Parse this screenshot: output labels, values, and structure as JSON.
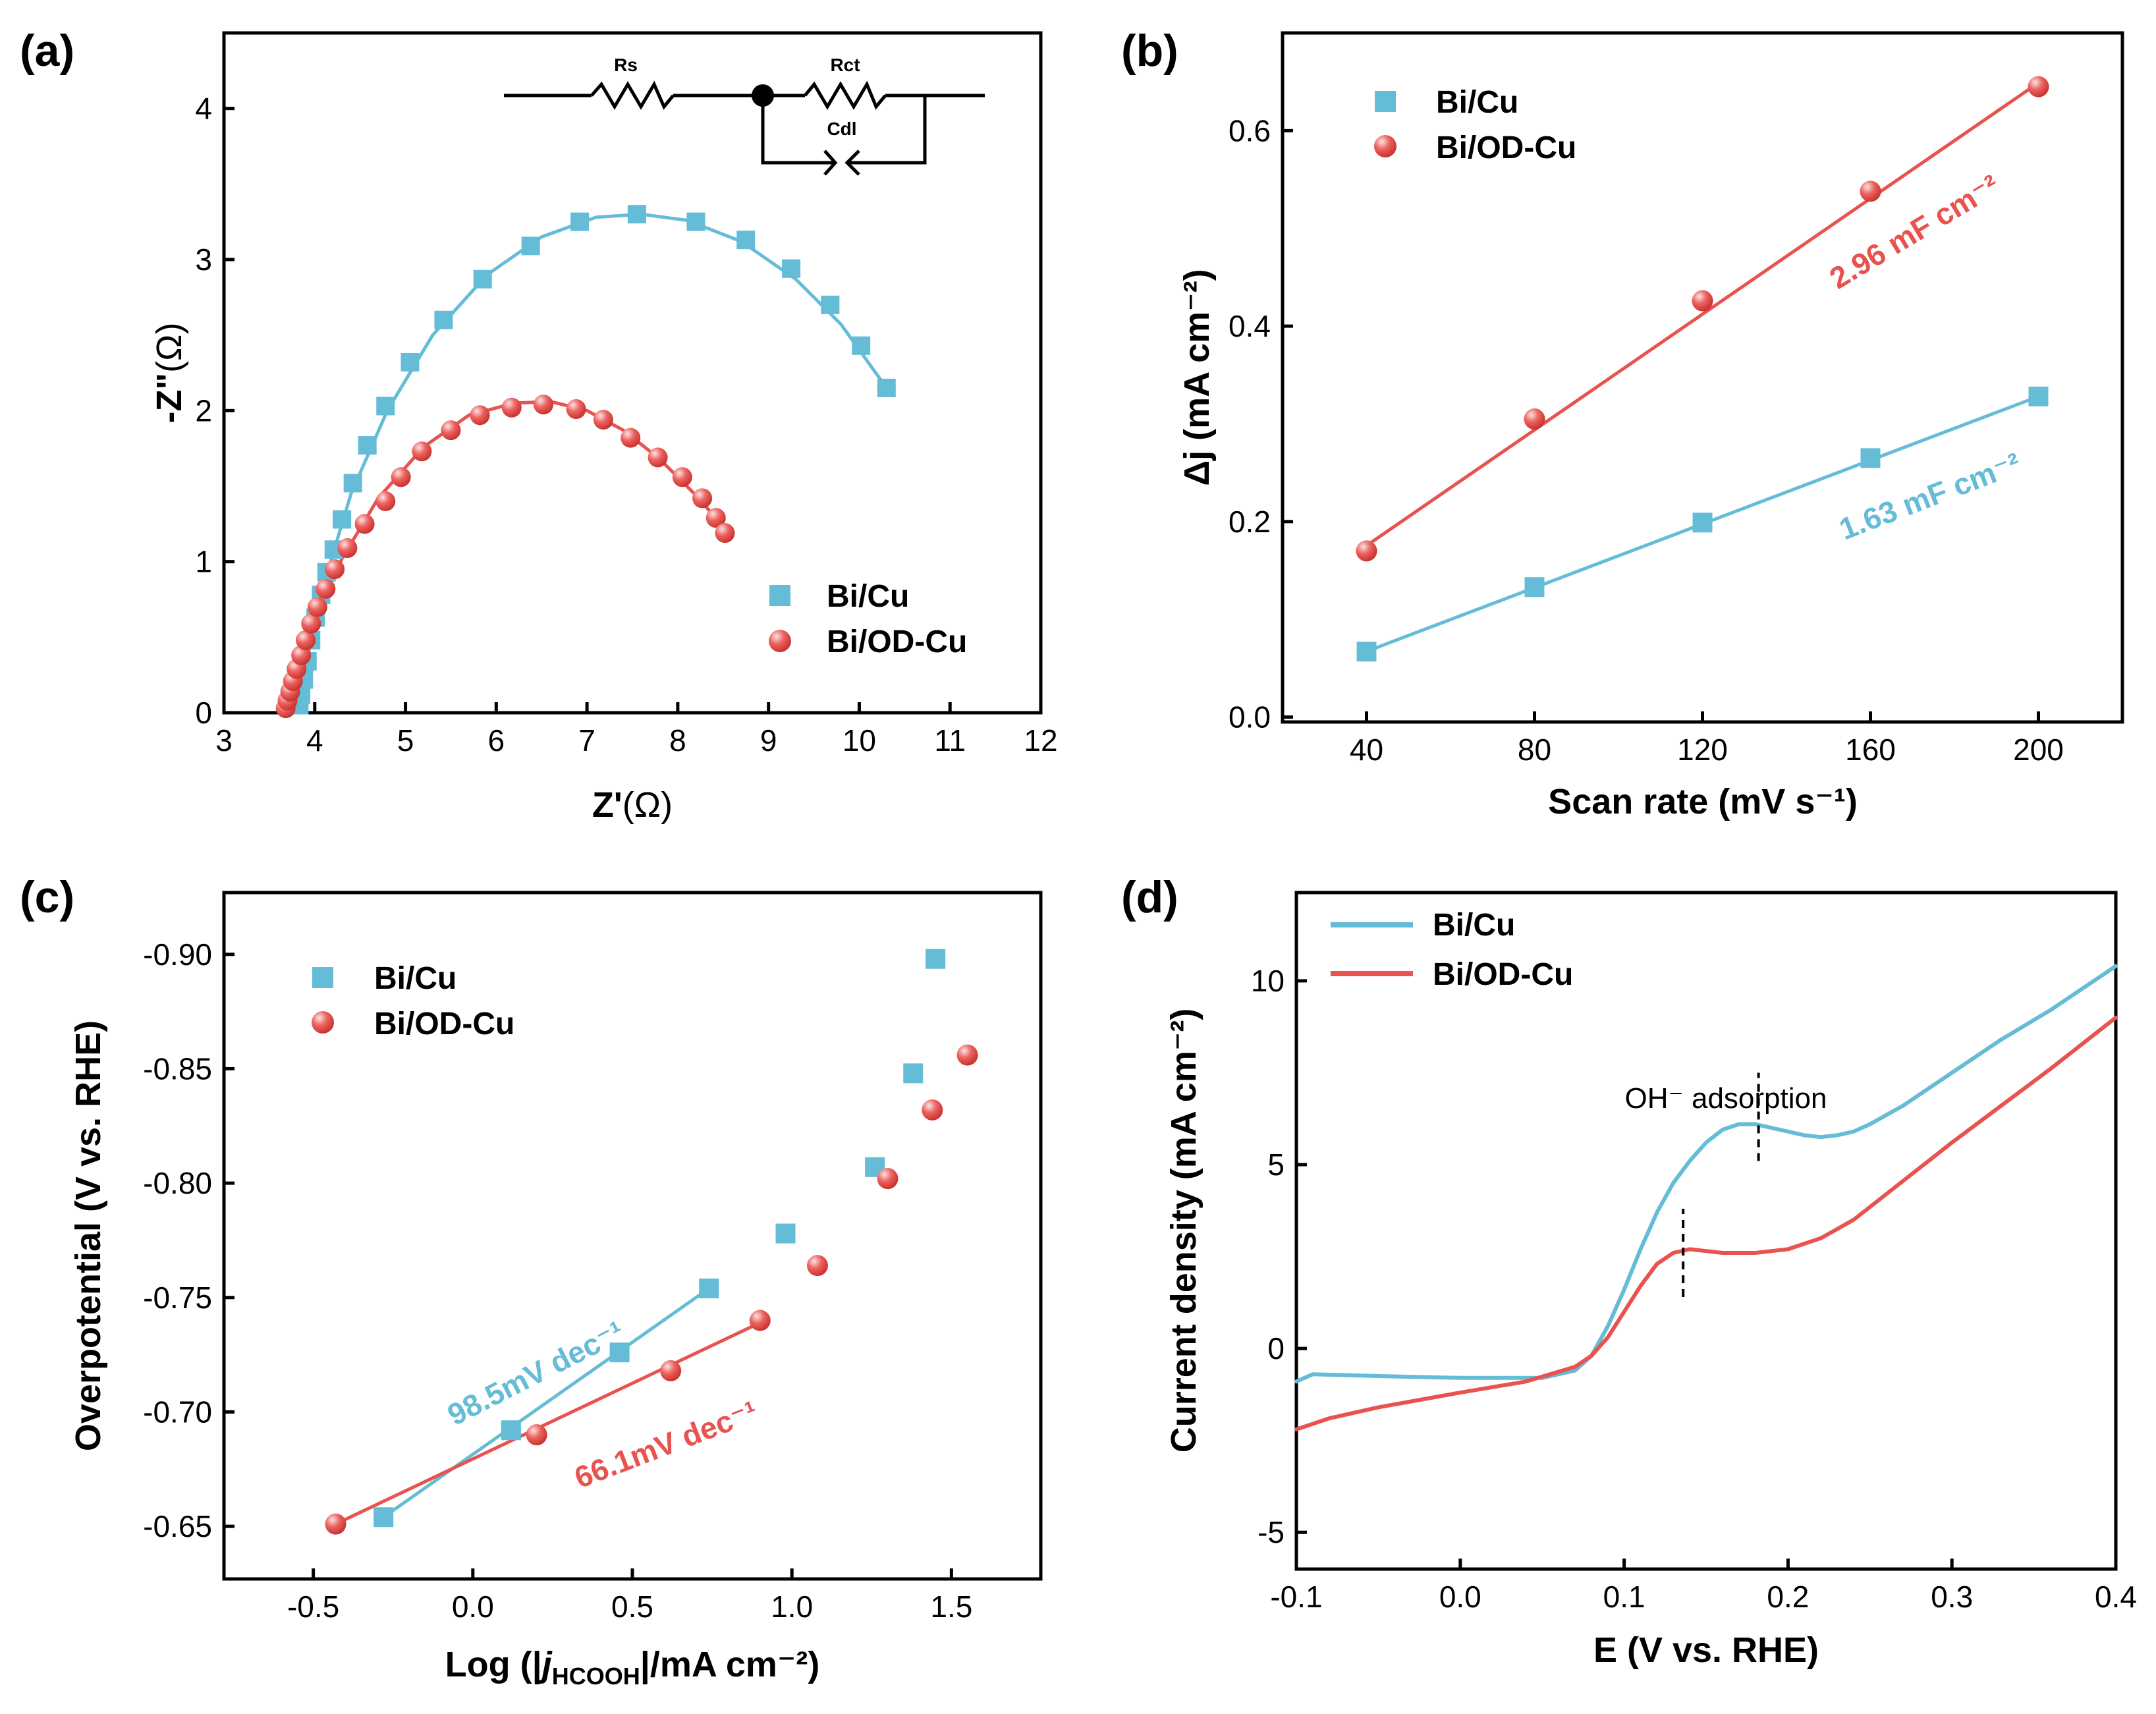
{
  "colors": {
    "bi_cu": "#65bcd6",
    "bi_od_cu": "#e8524f"
  },
  "chart_data": [
    {
      "id": "a",
      "panel_label": "(a)",
      "type": "scatter",
      "xlabel_main": "Z'",
      "xlabel_unit": "(Ω)",
      "ylabel_main": "-Z\"",
      "ylabel_unit": "(Ω)",
      "xlim": [
        3,
        12
      ],
      "ylim": [
        0,
        4.5
      ],
      "xticks": [
        3,
        4,
        5,
        6,
        7,
        8,
        9,
        10,
        11,
        12
      ],
      "yticks": [
        0,
        1,
        2,
        3,
        4
      ],
      "legend_position": "lower-right",
      "inset_circuit": {
        "labels": [
          "Rs",
          "Rct",
          "Cdl"
        ]
      },
      "series": [
        {
          "name": "Bi/Cu",
          "color": "#65bcd6",
          "marker": "square",
          "x": [
            3.83,
            3.85,
            3.88,
            3.92,
            3.96,
            4.01,
            4.07,
            4.13,
            4.21,
            4.3,
            4.42,
            4.58,
            4.78,
            5.05,
            5.42,
            5.85,
            6.38,
            6.92,
            7.55,
            8.2,
            8.75,
            9.25,
            9.68,
            10.02,
            10.3
          ],
          "y": [
            0.05,
            0.12,
            0.22,
            0.34,
            0.48,
            0.63,
            0.78,
            0.93,
            1.08,
            1.28,
            1.52,
            1.77,
            2.03,
            2.32,
            2.6,
            2.87,
            3.09,
            3.25,
            3.3,
            3.25,
            3.13,
            2.94,
            2.7,
            2.43,
            2.15
          ],
          "fit_x": [
            3.8,
            3.95,
            4.15,
            4.4,
            4.8,
            5.3,
            5.9,
            6.5,
            7.1,
            7.6,
            8.1,
            8.7,
            9.3,
            9.8,
            10.3
          ],
          "fit_y": [
            0.0,
            0.45,
            0.95,
            1.45,
            2.0,
            2.5,
            2.9,
            3.15,
            3.28,
            3.3,
            3.26,
            3.12,
            2.87,
            2.57,
            2.15
          ]
        },
        {
          "name": "Bi/OD-Cu",
          "color": "#e8524f",
          "marker": "sphere",
          "x": [
            3.68,
            3.7,
            3.73,
            3.76,
            3.8,
            3.85,
            3.9,
            3.96,
            4.03,
            4.12,
            4.22,
            4.36,
            4.55,
            4.78,
            4.95,
            5.18,
            5.5,
            5.82,
            6.17,
            6.52,
            6.88,
            7.18,
            7.48,
            7.78,
            8.05,
            8.27,
            8.42,
            8.52
          ],
          "y": [
            0.03,
            0.08,
            0.14,
            0.21,
            0.29,
            0.38,
            0.48,
            0.59,
            0.7,
            0.82,
            0.95,
            1.09,
            1.25,
            1.4,
            1.56,
            1.73,
            1.87,
            1.97,
            2.02,
            2.04,
            2.01,
            1.94,
            1.82,
            1.69,
            1.56,
            1.42,
            1.29,
            1.19
          ],
          "fit_x": [
            3.65,
            3.8,
            4.0,
            4.3,
            4.7,
            5.2,
            5.7,
            6.2,
            6.6,
            7.0,
            7.4,
            7.8,
            8.2,
            8.52
          ],
          "fit_y": [
            0.0,
            0.28,
            0.62,
            1.02,
            1.42,
            1.76,
            1.97,
            2.05,
            2.06,
            2.0,
            1.87,
            1.68,
            1.44,
            1.22
          ]
        }
      ]
    },
    {
      "id": "b",
      "panel_label": "(b)",
      "type": "scatter",
      "xlabel": "Scan rate (mV s⁻¹)",
      "ylabel": "Δj (mA cm⁻²)",
      "xlim": [
        20,
        220
      ],
      "ylim": [
        -0.005,
        0.7
      ],
      "xticks": [
        40,
        80,
        120,
        160,
        200
      ],
      "yticks": [
        0.0,
        0.2,
        0.4,
        0.6
      ],
      "ytick_labels": [
        "0.0",
        "0.2",
        "0.4",
        "0.6"
      ],
      "legend_position": "top-left",
      "series": [
        {
          "name": "Bi/Cu",
          "color": "#65bcd6",
          "marker": "square",
          "x": [
            40,
            80,
            120,
            160,
            200
          ],
          "y": [
            0.067,
            0.133,
            0.199,
            0.265,
            0.328
          ],
          "fit": {
            "slope": 0.00163,
            "intercept": 0.002
          },
          "annotation": "1.63 mF cm⁻²"
        },
        {
          "name": "Bi/OD-Cu",
          "color": "#e8524f",
          "marker": "sphere",
          "x": [
            40,
            80,
            120,
            160,
            200
          ],
          "y": [
            0.17,
            0.305,
            0.426,
            0.538,
            0.645
          ],
          "fit": {
            "slope": 0.00296,
            "intercept": 0.057
          },
          "annotation": "2.96 mF cm⁻²"
        }
      ]
    },
    {
      "id": "c",
      "panel_label": "(c)",
      "type": "scatter",
      "xlabel_prefix": "Log (|",
      "xlabel_j": "j",
      "xlabel_sub": "HCOOH",
      "xlabel_suffix": "|/mA cm⁻²)",
      "ylabel": "Overpotential (V vs. RHE)",
      "xlim": [
        -0.78,
        1.78
      ],
      "ylim": [
        -0.627,
        -0.927
      ],
      "xticks": [
        -0.5,
        0.0,
        0.5,
        1.0,
        1.5
      ],
      "xtick_labels": [
        "-0.5",
        "0.0",
        "0.5",
        "1.0",
        "1.5"
      ],
      "yticks": [
        -0.65,
        -0.7,
        -0.75,
        -0.8,
        -0.85,
        -0.9
      ],
      "ytick_labels": [
        "-0.65",
        "-0.70",
        "-0.75",
        "-0.80",
        "-0.85",
        "-0.90"
      ],
      "legend_position": "top-left",
      "series": [
        {
          "name": "Bi/Cu",
          "color": "#65bcd6",
          "marker": "square",
          "x": [
            -0.28,
            0.12,
            0.46,
            0.74,
            0.98,
            1.26,
            1.38,
            1.45
          ],
          "y": [
            -0.654,
            -0.692,
            -0.726,
            -0.754,
            -0.778,
            -0.807,
            -0.848,
            -0.898
          ],
          "fit_x": [
            -0.28,
            0.74
          ],
          "fit_y": [
            -0.654,
            -0.754
          ],
          "annotation": "98.5mV dec⁻¹"
        },
        {
          "name": "Bi/OD-Cu",
          "color": "#e8524f",
          "marker": "sphere",
          "x": [
            -0.43,
            0.2,
            0.62,
            0.9,
            1.08,
            1.3,
            1.44,
            1.55
          ],
          "y": [
            -0.651,
            -0.69,
            -0.718,
            -0.74,
            -0.764,
            -0.802,
            -0.832,
            -0.856
          ],
          "fit_x": [
            -0.43,
            0.9
          ],
          "fit_y": [
            -0.651,
            -0.739
          ],
          "annotation": "66.1mV dec⁻¹"
        }
      ]
    },
    {
      "id": "d",
      "panel_label": "(d)",
      "type": "line",
      "xlabel": "E (V vs. RHE)",
      "ylabel": "Current density (mA cm⁻²)",
      "xlim": [
        -0.1,
        0.4
      ],
      "ylim": [
        -6,
        12.4
      ],
      "xticks": [
        -0.1,
        0.0,
        0.1,
        0.2,
        0.3,
        0.4
      ],
      "xtick_labels": [
        "-0.1",
        "0.0",
        "0.1",
        "0.2",
        "0.3",
        "0.4"
      ],
      "yticks": [
        -5,
        0,
        5,
        10
      ],
      "ytick_labels": [
        "-5",
        "0",
        "5",
        "10"
      ],
      "legend_position": "top-left",
      "annotation": "OH⁻ adsorption",
      "marker_lines": [
        {
          "x": 0.182,
          "y_from": 5.1,
          "y_to": 7.5
        },
        {
          "x": 0.136,
          "y_from": 1.4,
          "y_to": 3.8
        }
      ],
      "series": [
        {
          "name": "Bi/Cu",
          "color": "#65bcd6",
          "x": [
            -0.1,
            -0.09,
            -0.05,
            0.0,
            0.05,
            0.07,
            0.08,
            0.09,
            0.1,
            0.11,
            0.12,
            0.13,
            0.14,
            0.15,
            0.16,
            0.17,
            0.18,
            0.19,
            0.2,
            0.21,
            0.22,
            0.23,
            0.24,
            0.25,
            0.27,
            0.3,
            0.33,
            0.36,
            0.4
          ],
          "y": [
            -0.9,
            -0.7,
            -0.75,
            -0.8,
            -0.8,
            -0.6,
            -0.2,
            0.6,
            1.6,
            2.7,
            3.7,
            4.5,
            5.1,
            5.6,
            5.95,
            6.1,
            6.1,
            6.0,
            5.9,
            5.8,
            5.75,
            5.8,
            5.9,
            6.1,
            6.6,
            7.5,
            8.4,
            9.2,
            10.4
          ]
        },
        {
          "name": "Bi/OD-Cu",
          "color": "#e8524f",
          "x": [
            -0.1,
            -0.08,
            -0.05,
            0.0,
            0.04,
            0.07,
            0.08,
            0.09,
            0.1,
            0.11,
            0.12,
            0.13,
            0.14,
            0.15,
            0.16,
            0.17,
            0.18,
            0.19,
            0.2,
            0.22,
            0.24,
            0.26,
            0.28,
            0.3,
            0.33,
            0.36,
            0.4
          ],
          "y": [
            -2.2,
            -1.9,
            -1.6,
            -1.2,
            -0.9,
            -0.5,
            -0.2,
            0.3,
            1.0,
            1.7,
            2.3,
            2.6,
            2.7,
            2.65,
            2.6,
            2.6,
            2.6,
            2.65,
            2.7,
            3.0,
            3.5,
            4.2,
            4.9,
            5.6,
            6.6,
            7.6,
            9.0
          ]
        }
      ]
    }
  ]
}
